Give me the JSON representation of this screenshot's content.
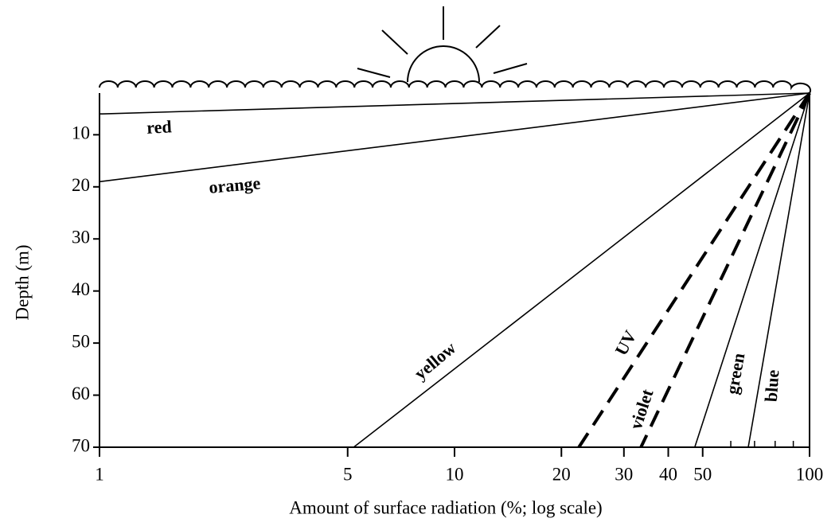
{
  "chart_data": {
    "type": "line",
    "x_label": "Amount of surface radiation (%; log scale)",
    "y_label": "Depth (m)",
    "xlim": [
      1,
      100
    ],
    "xticks": [
      1,
      5,
      10,
      20,
      30,
      40,
      50,
      100
    ],
    "xminorticks": [
      60,
      70,
      80,
      90
    ],
    "x_log": true,
    "ylim": [
      2,
      70
    ],
    "yticks": [
      10,
      20,
      30,
      40,
      50,
      60,
      70
    ],
    "y_inverted": true,
    "series": [
      {
        "name": "red",
        "color": "#000000",
        "dashed": false,
        "x": [
          100,
          1
        ],
        "values": [
          2,
          6
        ]
      },
      {
        "name": "orange",
        "color": "#000000",
        "dashed": false,
        "x": [
          100,
          1
        ],
        "values": [
          2,
          19
        ]
      },
      {
        "name": "yellow",
        "color": "#000000",
        "dashed": false,
        "x": [
          100,
          5.2
        ],
        "values": [
          2,
          70
        ]
      },
      {
        "name": "UV",
        "color": "#000000",
        "dashed": true,
        "x": [
          100,
          22.4
        ],
        "values": [
          2,
          70
        ]
      },
      {
        "name": "violet",
        "color": "#000000",
        "dashed": true,
        "x": [
          100,
          33.5
        ],
        "values": [
          2,
          70
        ]
      },
      {
        "name": "green",
        "color": "#000000",
        "dashed": false,
        "x": [
          100,
          47.5
        ],
        "values": [
          2,
          70
        ]
      },
      {
        "name": "blue",
        "color": "#000000",
        "dashed": false,
        "x": [
          100,
          67.2
        ],
        "values": [
          2,
          70
        ]
      }
    ]
  }
}
